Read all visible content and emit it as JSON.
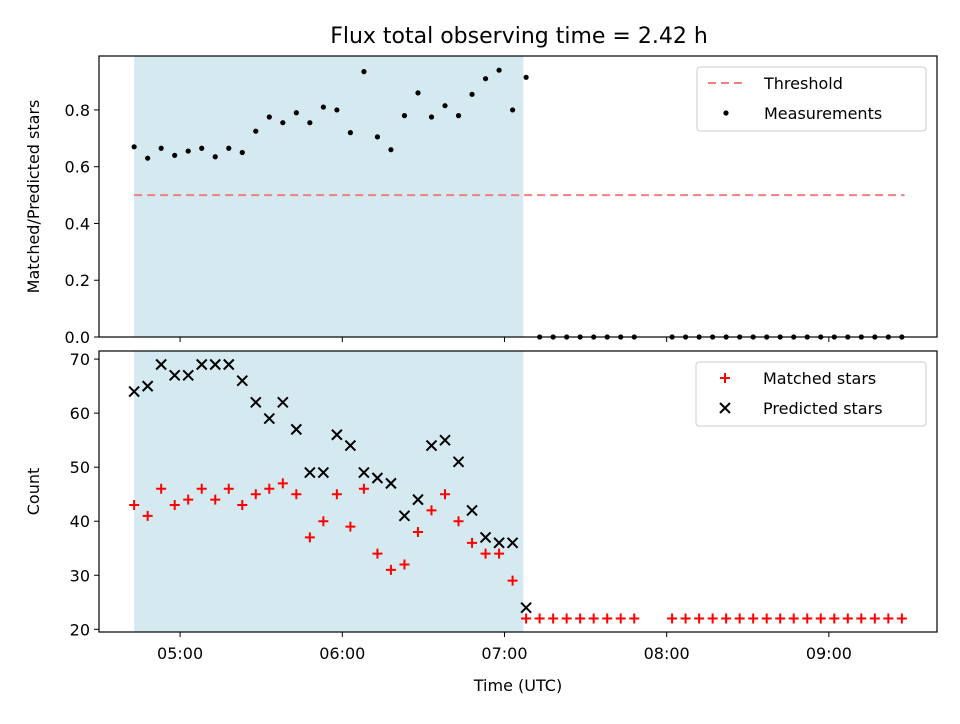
{
  "title": "Flux total observing time = 2.42 h",
  "colors": {
    "shade": "#d4eaf0",
    "threshold": "#f07f7f",
    "matched": "#ff0000",
    "predicted": "#000000",
    "measurement": "#000000"
  },
  "chart_data": [
    {
      "type": "scatter",
      "ylabel": "Matched/Predicted stars",
      "xlim": [
        "04:30",
        "09:40"
      ],
      "ylim": [
        0,
        0.99
      ],
      "yticks": [
        "0.0",
        "0.2",
        "0.4",
        "0.6",
        "0.8"
      ],
      "shaded_region": [
        "04:43",
        "07:07"
      ],
      "legend_position": "upper-right",
      "legend": [
        "Threshold",
        "Measurements"
      ],
      "threshold": {
        "name": "Threshold",
        "value": 0.5,
        "x": [
          "04:43",
          "09:28"
        ]
      },
      "series": [
        {
          "name": "Measurements",
          "x": [
            "04:43",
            "04:48",
            "04:53",
            "04:58",
            "05:03",
            "05:08",
            "05:13",
            "05:18",
            "05:23",
            "05:28",
            "05:33",
            "05:38",
            "05:43",
            "05:48",
            "05:53",
            "05:58",
            "06:03",
            "06:08",
            "06:13",
            "06:18",
            "06:23",
            "06:28",
            "06:33",
            "06:38",
            "06:43",
            "06:48",
            "06:53",
            "06:58",
            "07:03",
            "07:08",
            "07:13",
            "07:18",
            "07:23",
            "07:28",
            "07:33",
            "07:38",
            "07:43",
            "07:48",
            "08:02",
            "08:07",
            "08:12",
            "08:17",
            "08:22",
            "08:27",
            "08:32",
            "08:37",
            "08:42",
            "08:47",
            "08:52",
            "08:57",
            "09:02",
            "09:07",
            "09:12",
            "09:17",
            "09:22",
            "09:27"
          ],
          "y": [
            0.67,
            0.63,
            0.665,
            0.64,
            0.655,
            0.665,
            0.635,
            0.665,
            0.65,
            0.725,
            0.775,
            0.755,
            0.79,
            0.755,
            0.81,
            0.8,
            0.72,
            0.935,
            0.705,
            0.66,
            0.78,
            0.86,
            0.775,
            0.815,
            0.78,
            0.855,
            0.91,
            0.94,
            0.8,
            0.915,
            0,
            0,
            0,
            0,
            0,
            0,
            0,
            0,
            0,
            0,
            0,
            0,
            0,
            0,
            0,
            0,
            0,
            0,
            0,
            0,
            0,
            0,
            0,
            0,
            0,
            0
          ]
        }
      ]
    },
    {
      "type": "scatter",
      "xlabel": "Time (UTC)",
      "ylabel": "Count",
      "xlim": [
        "04:30",
        "09:40"
      ],
      "ylim": [
        19.5,
        71.5
      ],
      "xticks": [
        "05:00",
        "06:00",
        "07:00",
        "08:00",
        "09:00"
      ],
      "yticks": [
        "20",
        "30",
        "40",
        "50",
        "60",
        "70"
      ],
      "shaded_region": [
        "04:43",
        "07:07"
      ],
      "legend_position": "upper-right",
      "legend": [
        "Matched stars",
        "Predicted stars"
      ],
      "series": [
        {
          "name": "Matched stars",
          "x": [
            "04:43",
            "04:48",
            "04:53",
            "04:58",
            "05:03",
            "05:08",
            "05:13",
            "05:18",
            "05:23",
            "05:28",
            "05:33",
            "05:38",
            "05:43",
            "05:48",
            "05:53",
            "05:58",
            "06:03",
            "06:08",
            "06:13",
            "06:18",
            "06:23",
            "06:28",
            "06:33",
            "06:38",
            "06:43",
            "06:48",
            "06:53",
            "06:58",
            "07:03",
            "07:08",
            "07:13",
            "07:18",
            "07:23",
            "07:28",
            "07:33",
            "07:38",
            "07:43",
            "07:48",
            "08:02",
            "08:07",
            "08:12",
            "08:17",
            "08:22",
            "08:27",
            "08:32",
            "08:37",
            "08:42",
            "08:47",
            "08:52",
            "08:57",
            "09:02",
            "09:07",
            "09:12",
            "09:17",
            "09:22",
            "09:27"
          ],
          "y": [
            43,
            41,
            46,
            43,
            44,
            46,
            44,
            46,
            43,
            45,
            46,
            47,
            45,
            37,
            40,
            45,
            39,
            46,
            34,
            31,
            32,
            38,
            42,
            45,
            40,
            36,
            34,
            34,
            29,
            22,
            22,
            22,
            22,
            22,
            22,
            22,
            22,
            22,
            22,
            22,
            22,
            22,
            22,
            22,
            22,
            22,
            22,
            22,
            22,
            22,
            22,
            22,
            22,
            22,
            22,
            22
          ]
        },
        {
          "name": "Predicted stars",
          "x": [
            "04:43",
            "04:48",
            "04:53",
            "04:58",
            "05:03",
            "05:08",
            "05:13",
            "05:18",
            "05:23",
            "05:28",
            "05:33",
            "05:38",
            "05:43",
            "05:48",
            "05:53",
            "05:58",
            "06:03",
            "06:08",
            "06:13",
            "06:18",
            "06:23",
            "06:28",
            "06:33",
            "06:38",
            "06:43",
            "06:48",
            "06:53",
            "06:58",
            "07:03",
            "07:08"
          ],
          "y": [
            64,
            65,
            69,
            67,
            67,
            69,
            69,
            69,
            66,
            62,
            59,
            62,
            57,
            49,
            49,
            56,
            54,
            49,
            48,
            47,
            41,
            44,
            54,
            55,
            51,
            42,
            37,
            36,
            36,
            24
          ]
        }
      ]
    }
  ]
}
